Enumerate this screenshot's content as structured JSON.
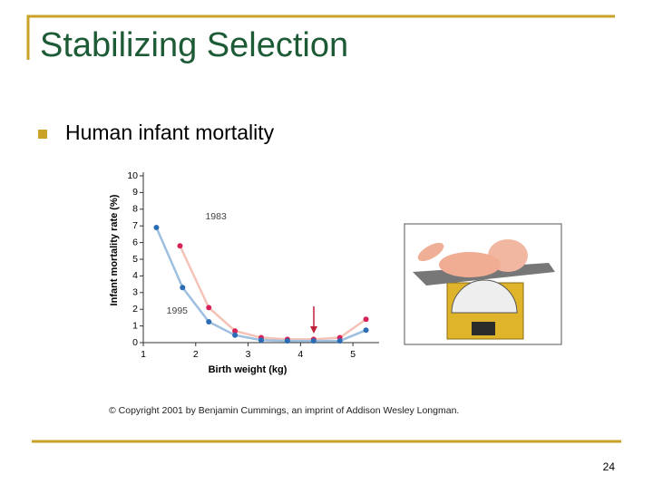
{
  "slide": {
    "title": "Stabilizing Selection",
    "bullet": "Human infant mortality",
    "copyright": "© Copyright 2001 by Benjamin Cummings, an imprint of Addison Wesley Longman.",
    "page_number": "24"
  },
  "chart_data": {
    "type": "line",
    "x_label": "Birth weight (kg)",
    "y_label": "Infant mortality rate (%)",
    "xlim": [
      1,
      5.5
    ],
    "xticks": [
      1,
      2,
      3,
      4,
      5
    ],
    "ylim": [
      0,
      10
    ],
    "yticks": [
      0,
      1,
      2,
      3,
      4,
      5,
      6,
      7,
      8,
      9,
      10
    ],
    "series": [
      {
        "name": "1983",
        "color": "#d6245a",
        "line_color": "#f5c2b8",
        "x": [
          1.7,
          2.25,
          2.75,
          3.25,
          3.75,
          4.25,
          4.75,
          5.25
        ],
        "values": [
          5.8,
          2.1,
          0.7,
          0.3,
          0.2,
          0.2,
          0.3,
          1.4
        ]
      },
      {
        "name": "1995",
        "color": "#2a6db5",
        "line_color": "#9dbfe0",
        "x": [
          1.25,
          1.75,
          2.25,
          2.75,
          3.25,
          3.75,
          4.25,
          4.75,
          5.25
        ],
        "values": [
          6.9,
          3.3,
          1.25,
          0.45,
          0.15,
          0.1,
          0.1,
          0.1,
          0.75
        ]
      }
    ]
  }
}
